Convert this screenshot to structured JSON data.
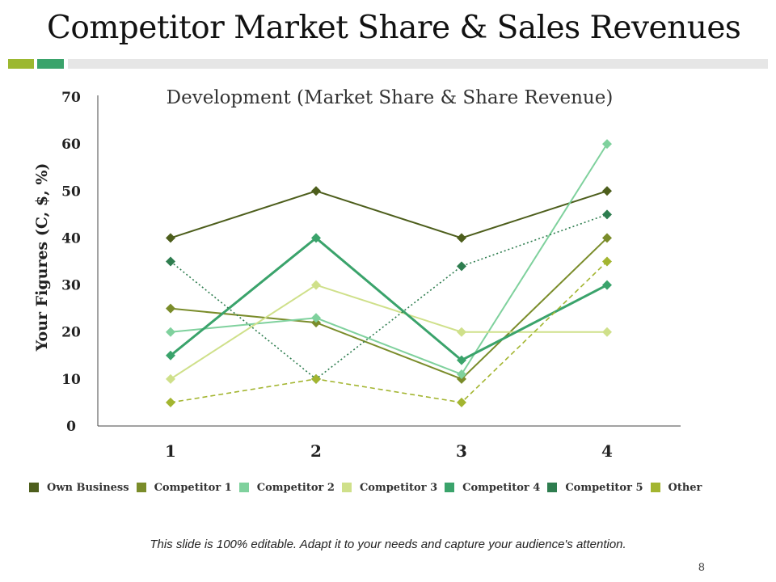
{
  "slide": {
    "title": "Competitor Market Share & Sales Revenues",
    "footer_note": "This slide is 100% editable. Adapt it to your needs and capture your audience's attention.",
    "page_number": "8",
    "accent_colors": [
      "#9cb830",
      "#3aa36b",
      "#e6e6e6"
    ]
  },
  "chart_data": {
    "type": "line",
    "title": "Development (Market Share & Share Revenue)",
    "xlabel": "",
    "ylabel": "Your Figures (C, $, %)",
    "categories": [
      "1",
      "2",
      "3",
      "4"
    ],
    "ylim": [
      0,
      70
    ],
    "yticks": [
      "0",
      "10",
      "20",
      "30",
      "40",
      "50",
      "60",
      "70"
    ],
    "grid": false,
    "legend_position": "bottom",
    "series": [
      {
        "name": "Own Business",
        "values": [
          40,
          50,
          40,
          50
        ],
        "color": "#4d5e1c",
        "style": "solid"
      },
      {
        "name": "Competitor 1",
        "values": [
          25,
          22,
          10,
          40
        ],
        "color": "#7a8c2a",
        "style": "solid"
      },
      {
        "name": "Competitor 2",
        "values": [
          20,
          23,
          11,
          60
        ],
        "color": "#7fd19d",
        "style": "solid"
      },
      {
        "name": "Competitor 3",
        "values": [
          10,
          30,
          20,
          20
        ],
        "color": "#cfe08a",
        "style": "solid"
      },
      {
        "name": "Competitor 4",
        "values": [
          15,
          40,
          14,
          30
        ],
        "color": "#3aa36b",
        "style": "solid"
      },
      {
        "name": "Competitor 5",
        "values": [
          35,
          10,
          34,
          45
        ],
        "color": "#2e7d4f",
        "style": "dotted"
      },
      {
        "name": "Other",
        "values": [
          5,
          10,
          5,
          35
        ],
        "color": "#a3b530",
        "style": "dashed"
      }
    ]
  }
}
